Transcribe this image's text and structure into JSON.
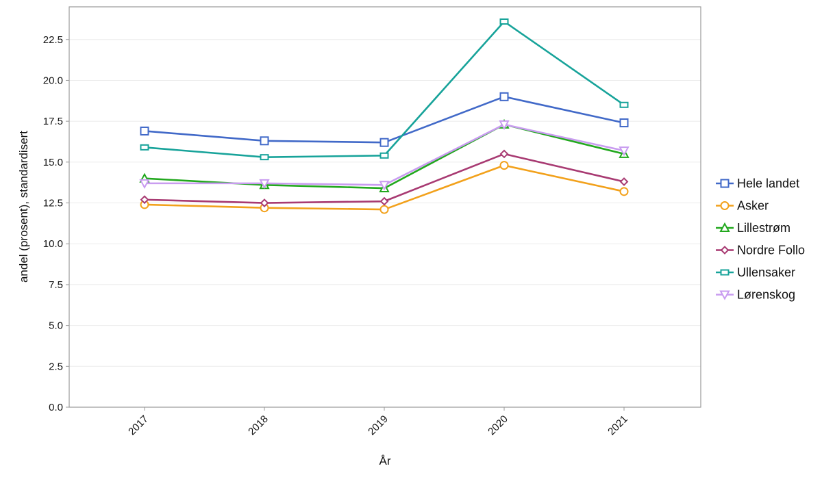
{
  "chart_data": {
    "type": "line",
    "title": "",
    "xlabel": "År",
    "ylabel": "andel (prosent), standardisert",
    "categories": [
      "2017",
      "2018",
      "2019",
      "2020",
      "2021"
    ],
    "ylim": [
      0,
      24.5
    ],
    "yticks": [
      "0.0",
      "2.5",
      "5.0",
      "7.5",
      "10.0",
      "12.5",
      "15.0",
      "17.5",
      "20.0",
      "22.5"
    ],
    "grid": true,
    "legend_position": "right",
    "series": [
      {
        "name": "Hele landet",
        "color": "#4169c8",
        "marker": "square",
        "values": [
          16.9,
          16.3,
          16.2,
          19.0,
          17.4
        ]
      },
      {
        "name": "Asker",
        "color": "#f2a11b",
        "marker": "circle",
        "values": [
          12.4,
          12.2,
          12.1,
          14.8,
          13.2
        ]
      },
      {
        "name": "Lillestrøm",
        "color": "#22a81e",
        "marker": "triangle-up",
        "values": [
          14.0,
          13.6,
          13.4,
          17.3,
          15.5
        ]
      },
      {
        "name": "Nordre Follo",
        "color": "#a83a72",
        "marker": "diamond",
        "values": [
          12.7,
          12.5,
          12.6,
          15.5,
          13.8
        ]
      },
      {
        "name": "Ullensaker",
        "color": "#17a39a",
        "marker": "rect-small",
        "values": [
          15.9,
          15.3,
          15.4,
          23.6,
          18.5
        ]
      },
      {
        "name": "Lørenskog",
        "color": "#c99cf0",
        "marker": "triangle-down",
        "values": [
          13.7,
          13.7,
          13.6,
          17.3,
          15.7
        ]
      }
    ]
  }
}
